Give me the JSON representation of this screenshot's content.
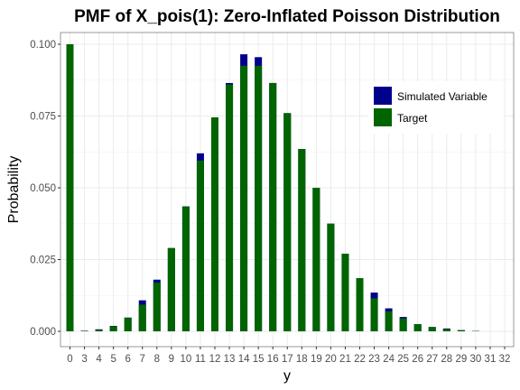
{
  "chart_data": {
    "type": "bar",
    "title": "PMF of X_pois(1): Zero-Inflated Poisson Distribution",
    "xlabel": "y",
    "ylabel": "Probability",
    "ylim": [
      0,
      0.103
    ],
    "y_ticks": [
      0.0,
      0.025,
      0.05,
      0.075,
      0.1
    ],
    "y_tick_labels": [
      "0.000",
      "0.025",
      "0.050",
      "0.075",
      "0.100"
    ],
    "categories": [
      "0",
      "3",
      "4",
      "5",
      "6",
      "7",
      "8",
      "9",
      "10",
      "11",
      "12",
      "13",
      "14",
      "15",
      "16",
      "17",
      "18",
      "19",
      "20",
      "21",
      "22",
      "23",
      "24",
      "25",
      "26",
      "27",
      "28",
      "29",
      "30",
      "31",
      "32"
    ],
    "grid": true,
    "legend_position": "right",
    "series": [
      {
        "name": "Simulated Variable",
        "color": "#00008b",
        "values": [
          0.1,
          0.0002,
          0.0007,
          0.0019,
          0.0048,
          0.0108,
          0.018,
          0.029,
          0.0435,
          0.062,
          0.0745,
          0.0865,
          0.0965,
          0.0955,
          0.0865,
          0.076,
          0.0635,
          0.05,
          0.0375,
          0.027,
          0.0185,
          0.0135,
          0.008,
          0.005,
          0.0025,
          0.0015,
          0.001,
          0.0004,
          0.0001,
          0.0,
          0.0
        ]
      },
      {
        "name": "Target",
        "color": "#006400",
        "values": [
          0.1,
          0.0001,
          0.0005,
          0.0018,
          0.0047,
          0.0093,
          0.017,
          0.029,
          0.0435,
          0.0595,
          0.0745,
          0.086,
          0.0925,
          0.0925,
          0.0865,
          0.076,
          0.0635,
          0.05,
          0.0375,
          0.027,
          0.0185,
          0.0115,
          0.007,
          0.0045,
          0.0025,
          0.0015,
          0.0008,
          0.0004,
          0.0001,
          0.0,
          0.0
        ]
      }
    ]
  }
}
